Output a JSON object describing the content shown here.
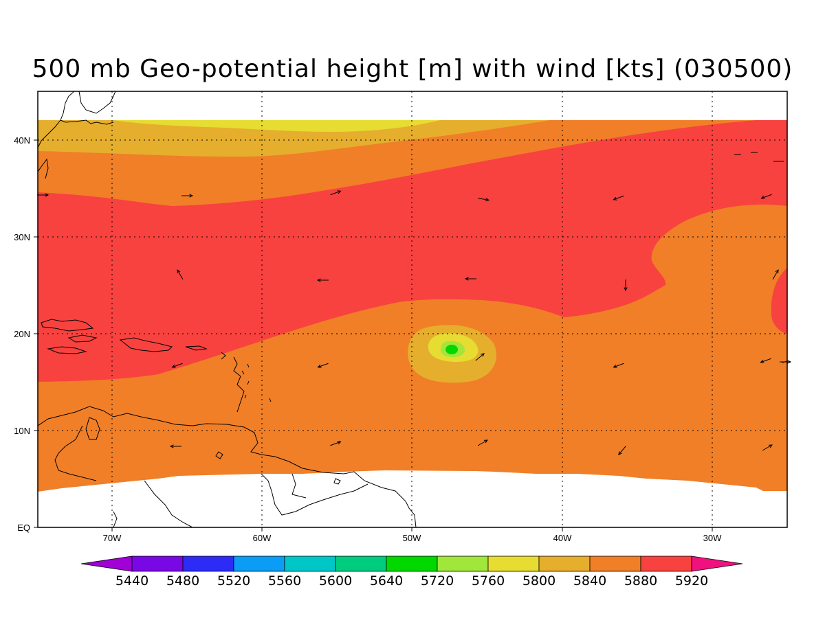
{
  "title": "500 mb Geo-potential height [m] with wind [kts] (030500)",
  "lon_labels": [
    "70W",
    "60W",
    "50W",
    "40W",
    "30W"
  ],
  "lat_labels": [
    "EQ",
    "10N",
    "20N",
    "30N",
    "40N"
  ],
  "colorbar": {
    "labels": [
      "5440",
      "5480",
      "5520",
      "5560",
      "5600",
      "5640",
      "5720",
      "5760",
      "5800",
      "5840",
      "5880",
      "5920"
    ],
    "colors": [
      "#a100d6",
      "#7a08e4",
      "#2c2cf6",
      "#0b9cf5",
      "#00c7c7",
      "#00cc80",
      "#00d800",
      "#a1e63b",
      "#e6dc32",
      "#e6ae2d",
      "#f07f28",
      "#f8423f",
      "#f0107e"
    ]
  },
  "fill_colors": {
    "yellow": "#e6dc32",
    "gold": "#e6ae2d",
    "orange": "#f07f28",
    "red": "#f8423f",
    "light_green": "#a1e63b",
    "green": "#00d800"
  },
  "wind_vectors_deg": [
    0,
    0,
    20,
    -10,
    200,
    200,
    120,
    180,
    180,
    -90,
    60,
    200,
    200,
    40,
    200,
    200,
    0,
    180,
    20,
    30,
    230,
    30
  ]
}
